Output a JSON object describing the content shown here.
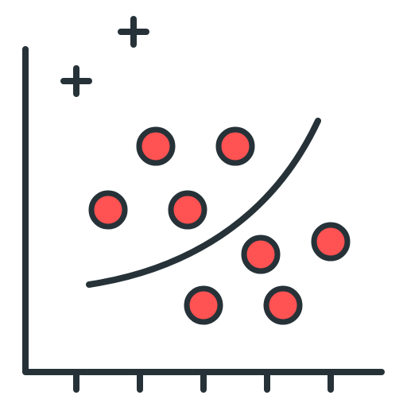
{
  "icon": {
    "name": "scatter-plot-classification-icon",
    "stroke_color": "#263238",
    "fill_color": "#ff5252",
    "background": "#ffffff"
  },
  "markers": {
    "plus_count": 2,
    "circle_count": 8
  }
}
